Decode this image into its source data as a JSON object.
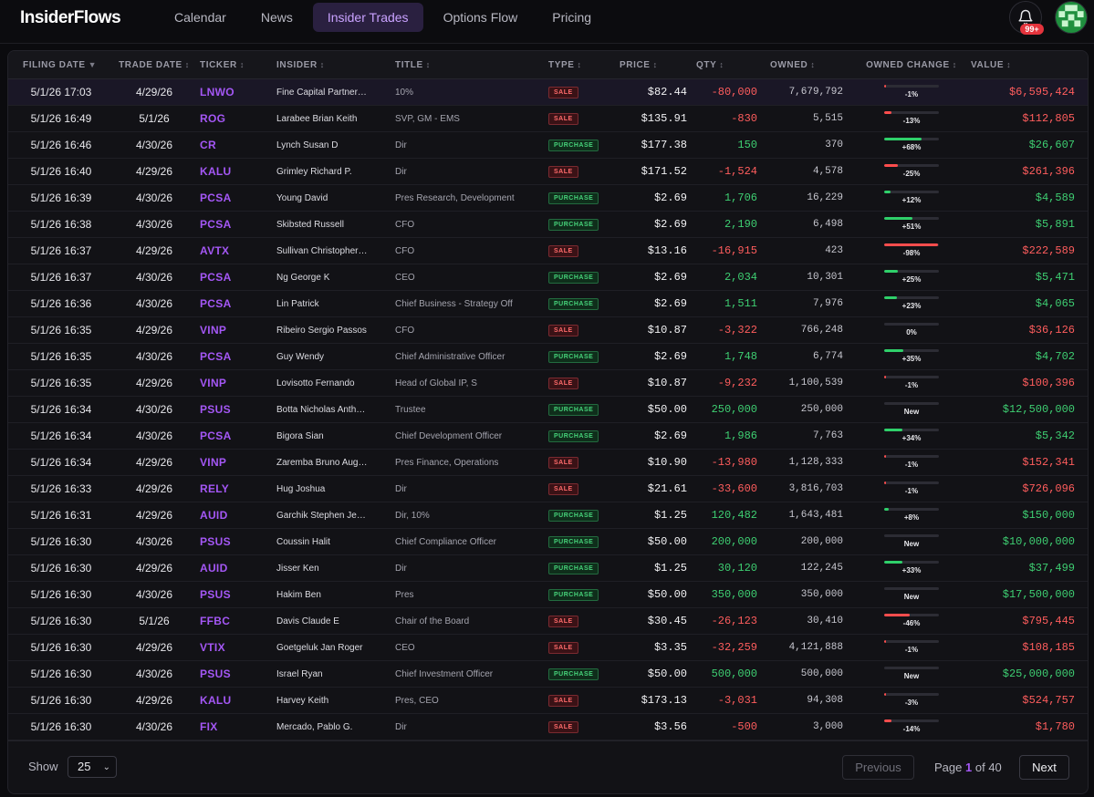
{
  "app": {
    "logo": "InsiderFlows"
  },
  "nav": [
    {
      "label": "Calendar",
      "active": false
    },
    {
      "label": "News",
      "active": false
    },
    {
      "label": "Insider Trades",
      "active": true
    },
    {
      "label": "Options Flow",
      "active": false
    },
    {
      "label": "Pricing",
      "active": false
    }
  ],
  "header_icons": {
    "notifications_icon": "bell-icon",
    "notifications_badge": "99+",
    "avatar_icon": "pixel-avatar-icon"
  },
  "colors": {
    "accent": "#a457f5",
    "sale": "#ff5d5d",
    "purchase": "#3ecf72",
    "background": "#0b0b0e"
  },
  "table": {
    "columns": [
      {
        "label": "FILING DATE",
        "sort": "▼"
      },
      {
        "label": "TRADE DATE",
        "sort": "↕"
      },
      {
        "label": "TICKER",
        "sort": "↕"
      },
      {
        "label": "INSIDER",
        "sort": "↕"
      },
      {
        "label": "TITLE",
        "sort": "↕"
      },
      {
        "label": "TYPE",
        "sort": "↕"
      },
      {
        "label": "PRICE",
        "sort": "↕"
      },
      {
        "label": "QTY",
        "sort": "↕"
      },
      {
        "label": "OWNED",
        "sort": "↕"
      },
      {
        "label": "OWNED CHANGE",
        "sort": "↕"
      },
      {
        "label": "VALUE",
        "sort": "↕"
      }
    ],
    "rows": [
      {
        "filing_date": "5/1/26 17:03",
        "trade_date": "4/29/26",
        "ticker": "LNWO",
        "insider": "Fine Capital Partner…",
        "title": "10%",
        "type": "SALE",
        "price": "$82.44",
        "qty": "-80,000",
        "owned": "7,679,792",
        "owned_change": "-1%",
        "change_fraction": 0.01,
        "value": "$6,595,424"
      },
      {
        "filing_date": "5/1/26 16:49",
        "trade_date": "5/1/26",
        "ticker": "ROG",
        "insider": "Larabee Brian Keith",
        "title": "SVP, GM - EMS",
        "type": "SALE",
        "price": "$135.91",
        "qty": "-830",
        "owned": "5,515",
        "owned_change": "-13%",
        "change_fraction": 0.13,
        "value": "$112,805"
      },
      {
        "filing_date": "5/1/26 16:46",
        "trade_date": "4/30/26",
        "ticker": "CR",
        "insider": "Lynch Susan D",
        "title": "Dir",
        "type": "PURCHASE",
        "price": "$177.38",
        "qty": "150",
        "owned": "370",
        "owned_change": "+68%",
        "change_fraction": 0.68,
        "value": "$26,607"
      },
      {
        "filing_date": "5/1/26 16:40",
        "trade_date": "4/29/26",
        "ticker": "KALU",
        "insider": "Grimley Richard P.",
        "title": "Dir",
        "type": "SALE",
        "price": "$171.52",
        "qty": "-1,524",
        "owned": "4,578",
        "owned_change": "-25%",
        "change_fraction": 0.25,
        "value": "$261,396"
      },
      {
        "filing_date": "5/1/26 16:39",
        "trade_date": "4/30/26",
        "ticker": "PCSA",
        "insider": "Young David",
        "title": "Pres Research, Development",
        "type": "PURCHASE",
        "price": "$2.69",
        "qty": "1,706",
        "owned": "16,229",
        "owned_change": "+12%",
        "change_fraction": 0.12,
        "value": "$4,589"
      },
      {
        "filing_date": "5/1/26 16:38",
        "trade_date": "4/30/26",
        "ticker": "PCSA",
        "insider": "Skibsted Russell",
        "title": "CFO",
        "type": "PURCHASE",
        "price": "$2.69",
        "qty": "2,190",
        "owned": "6,498",
        "owned_change": "+51%",
        "change_fraction": 0.51,
        "value": "$5,891"
      },
      {
        "filing_date": "5/1/26 16:37",
        "trade_date": "4/29/26",
        "ticker": "AVTX",
        "insider": "Sullivan Christopher…",
        "title": "CFO",
        "type": "SALE",
        "price": "$13.16",
        "qty": "-16,915",
        "owned": "423",
        "owned_change": "-98%",
        "change_fraction": 0.98,
        "value": "$222,589"
      },
      {
        "filing_date": "5/1/26 16:37",
        "trade_date": "4/30/26",
        "ticker": "PCSA",
        "insider": "Ng George K",
        "title": "CEO",
        "type": "PURCHASE",
        "price": "$2.69",
        "qty": "2,034",
        "owned": "10,301",
        "owned_change": "+25%",
        "change_fraction": 0.25,
        "value": "$5,471"
      },
      {
        "filing_date": "5/1/26 16:36",
        "trade_date": "4/30/26",
        "ticker": "PCSA",
        "insider": "Lin Patrick",
        "title": "Chief Business - Strategy Off",
        "type": "PURCHASE",
        "price": "$2.69",
        "qty": "1,511",
        "owned": "7,976",
        "owned_change": "+23%",
        "change_fraction": 0.23,
        "value": "$4,065"
      },
      {
        "filing_date": "5/1/26 16:35",
        "trade_date": "4/29/26",
        "ticker": "VINP",
        "insider": "Ribeiro Sergio Passos",
        "title": "CFO",
        "type": "SALE",
        "price": "$10.87",
        "qty": "-3,322",
        "owned": "766,248",
        "owned_change": "0%",
        "change_fraction": 0.0,
        "value": "$36,126"
      },
      {
        "filing_date": "5/1/26 16:35",
        "trade_date": "4/30/26",
        "ticker": "PCSA",
        "insider": "Guy Wendy",
        "title": "Chief Administrative Officer",
        "type": "PURCHASE",
        "price": "$2.69",
        "qty": "1,748",
        "owned": "6,774",
        "owned_change": "+35%",
        "change_fraction": 0.35,
        "value": "$4,702"
      },
      {
        "filing_date": "5/1/26 16:35",
        "trade_date": "4/29/26",
        "ticker": "VINP",
        "insider": "Lovisotto Fernando",
        "title": "Head of Global IP, S",
        "type": "SALE",
        "price": "$10.87",
        "qty": "-9,232",
        "owned": "1,100,539",
        "owned_change": "-1%",
        "change_fraction": 0.01,
        "value": "$100,396"
      },
      {
        "filing_date": "5/1/26 16:34",
        "trade_date": "4/30/26",
        "ticker": "PSUS",
        "insider": "Botta Nicholas Anth…",
        "title": "Trustee",
        "type": "PURCHASE",
        "price": "$50.00",
        "qty": "250,000",
        "owned": "250,000",
        "owned_change": "New",
        "change_fraction": 0.0,
        "value": "$12,500,000"
      },
      {
        "filing_date": "5/1/26 16:34",
        "trade_date": "4/30/26",
        "ticker": "PCSA",
        "insider": "Bigora Sian",
        "title": "Chief Development Officer",
        "type": "PURCHASE",
        "price": "$2.69",
        "qty": "1,986",
        "owned": "7,763",
        "owned_change": "+34%",
        "change_fraction": 0.34,
        "value": "$5,342"
      },
      {
        "filing_date": "5/1/26 16:34",
        "trade_date": "4/29/26",
        "ticker": "VINP",
        "insider": "Zaremba Bruno Aug…",
        "title": "Pres Finance, Operations",
        "type": "SALE",
        "price": "$10.90",
        "qty": "-13,980",
        "owned": "1,128,333",
        "owned_change": "-1%",
        "change_fraction": 0.01,
        "value": "$152,341"
      },
      {
        "filing_date": "5/1/26 16:33",
        "trade_date": "4/29/26",
        "ticker": "RELY",
        "insider": "Hug Joshua",
        "title": "Dir",
        "type": "SALE",
        "price": "$21.61",
        "qty": "-33,600",
        "owned": "3,816,703",
        "owned_change": "-1%",
        "change_fraction": 0.01,
        "value": "$726,096"
      },
      {
        "filing_date": "5/1/26 16:31",
        "trade_date": "4/29/26",
        "ticker": "AUID",
        "insider": "Garchik Stephen Je…",
        "title": "Dir, 10%",
        "type": "PURCHASE",
        "price": "$1.25",
        "qty": "120,482",
        "owned": "1,643,481",
        "owned_change": "+8%",
        "change_fraction": 0.08,
        "value": "$150,000"
      },
      {
        "filing_date": "5/1/26 16:30",
        "trade_date": "4/30/26",
        "ticker": "PSUS",
        "insider": "Coussin Halit",
        "title": "Chief Compliance Officer",
        "type": "PURCHASE",
        "price": "$50.00",
        "qty": "200,000",
        "owned": "200,000",
        "owned_change": "New",
        "change_fraction": 0.0,
        "value": "$10,000,000"
      },
      {
        "filing_date": "5/1/26 16:30",
        "trade_date": "4/29/26",
        "ticker": "AUID",
        "insider": "Jisser Ken",
        "title": "Dir",
        "type": "PURCHASE",
        "price": "$1.25",
        "qty": "30,120",
        "owned": "122,245",
        "owned_change": "+33%",
        "change_fraction": 0.33,
        "value": "$37,499"
      },
      {
        "filing_date": "5/1/26 16:30",
        "trade_date": "4/30/26",
        "ticker": "PSUS",
        "insider": "Hakim Ben",
        "title": "Pres",
        "type": "PURCHASE",
        "price": "$50.00",
        "qty": "350,000",
        "owned": "350,000",
        "owned_change": "New",
        "change_fraction": 0.0,
        "value": "$17,500,000"
      },
      {
        "filing_date": "5/1/26 16:30",
        "trade_date": "5/1/26",
        "ticker": "FFBC",
        "insider": "Davis Claude E",
        "title": "Chair of the Board",
        "type": "SALE",
        "price": "$30.45",
        "qty": "-26,123",
        "owned": "30,410",
        "owned_change": "-46%",
        "change_fraction": 0.46,
        "value": "$795,445"
      },
      {
        "filing_date": "5/1/26 16:30",
        "trade_date": "4/29/26",
        "ticker": "VTIX",
        "insider": "Goetgeluk Jan Roger",
        "title": "CEO",
        "type": "SALE",
        "price": "$3.35",
        "qty": "-32,259",
        "owned": "4,121,888",
        "owned_change": "-1%",
        "change_fraction": 0.01,
        "value": "$108,185"
      },
      {
        "filing_date": "5/1/26 16:30",
        "trade_date": "4/30/26",
        "ticker": "PSUS",
        "insider": "Israel Ryan",
        "title": "Chief Investment Officer",
        "type": "PURCHASE",
        "price": "$50.00",
        "qty": "500,000",
        "owned": "500,000",
        "owned_change": "New",
        "change_fraction": 0.0,
        "value": "$25,000,000"
      },
      {
        "filing_date": "5/1/26 16:30",
        "trade_date": "4/29/26",
        "ticker": "KALU",
        "insider": "Harvey Keith",
        "title": "Pres, CEO",
        "type": "SALE",
        "price": "$173.13",
        "qty": "-3,031",
        "owned": "94,308",
        "owned_change": "-3%",
        "change_fraction": 0.03,
        "value": "$524,757"
      },
      {
        "filing_date": "5/1/26 16:30",
        "trade_date": "4/30/26",
        "ticker": "FIX",
        "insider": "Mercado, Pablo G.",
        "title": "Dir",
        "type": "SALE",
        "price": "$3.56",
        "qty": "-500",
        "owned": "3,000",
        "owned_change": "-14%",
        "change_fraction": 0.14,
        "value": "$1,780"
      }
    ]
  },
  "pagination": {
    "show_label": "Show",
    "page_size": "25",
    "previous_label": "Previous",
    "page_word": "Page",
    "current_page": "1",
    "of_word": "of",
    "total_pages": "40",
    "next_label": "Next"
  }
}
